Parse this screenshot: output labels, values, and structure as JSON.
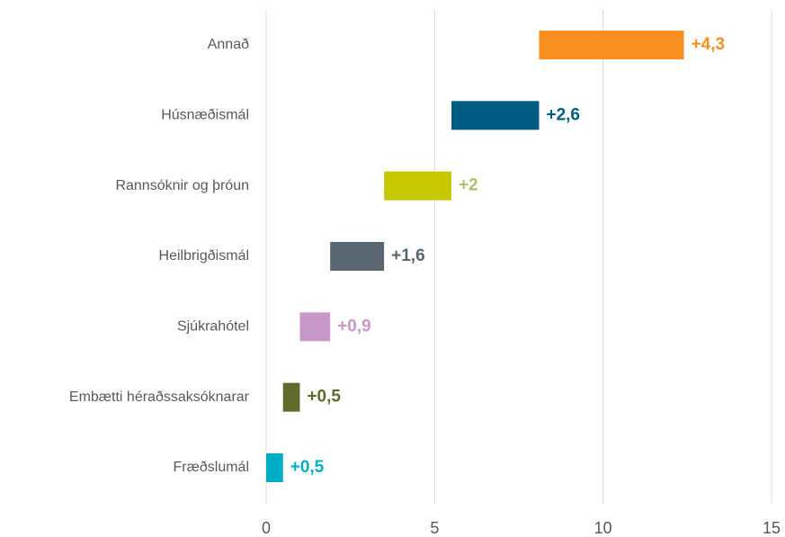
{
  "chart_data": {
    "type": "waterfall",
    "categories": [
      "Annað",
      "Húsnæðismál",
      "Rannsóknir og þróun",
      "Heilbrigðismál",
      "Sjúkrahótel",
      "Embætti héraðssaksóknarar",
      "Fræðslumál"
    ],
    "values": [
      4.3,
      2.6,
      2,
      1.6,
      0.9,
      0.5,
      0.5
    ],
    "value_labels": [
      "+4,3",
      "+2,6",
      "+2",
      "+1,6",
      "+0,9",
      "+0,5",
      "+0,5"
    ],
    "colors": [
      "#f7901e",
      "#005b82",
      "#c8c800",
      "#5a6670",
      "#c898c8",
      "#5f6b2d",
      "#00aec8"
    ],
    "label_colors": [
      "#f7901e",
      "#005b82",
      "#a9c46c",
      "#5a6670",
      "#c898c8",
      "#5f6b2d",
      "#00aec8"
    ],
    "xlim": [
      0,
      15
    ],
    "xticks": [
      0,
      5,
      10,
      15
    ],
    "grid": true
  }
}
